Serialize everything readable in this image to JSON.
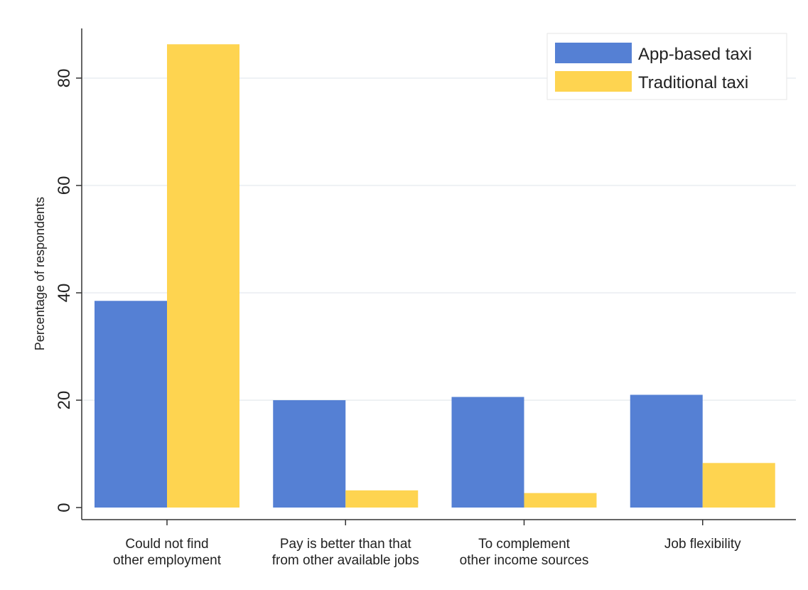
{
  "chart_data": {
    "type": "bar",
    "title": "",
    "xlabel": "",
    "ylabel": "Percentage of respondents",
    "ylim": [
      0,
      87
    ],
    "yticks": [
      0,
      20,
      40,
      60,
      80
    ],
    "grid": true,
    "legend_position": "top-right",
    "categories": [
      [
        "Could not find",
        "other employment"
      ],
      [
        "Pay is better than that",
        "from other available jobs"
      ],
      [
        "To complement",
        "other income sources"
      ],
      [
        "Job flexibility"
      ]
    ],
    "series": [
      {
        "name": "App-based taxi",
        "color": "#5580d4",
        "values": [
          38.5,
          20.0,
          20.6,
          21.0
        ]
      },
      {
        "name": "Traditional taxi",
        "color": "#fed450",
        "values": [
          86.3,
          3.2,
          2.7,
          8.3
        ]
      }
    ]
  }
}
